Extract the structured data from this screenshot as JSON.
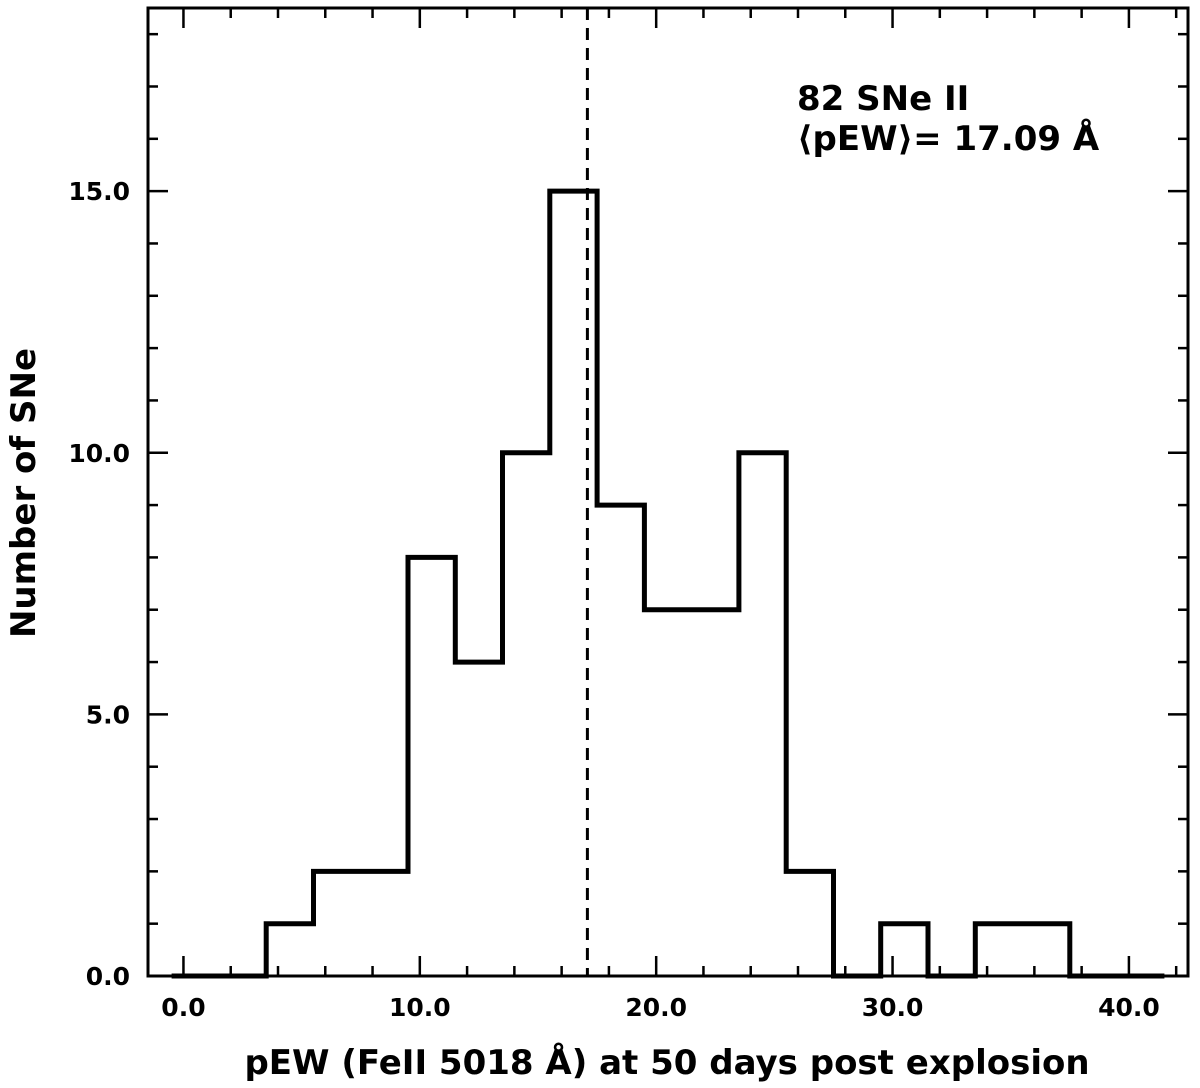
{
  "chart_data": {
    "type": "bar",
    "style": "step-histogram",
    "title": "",
    "xlabel": "pEW (FeII 5018 Å) at 50 days post explosion",
    "ylabel": "Number of SNe",
    "xlim": [
      -1.5,
      42.5
    ],
    "ylim": [
      0,
      18.5
    ],
    "bin_edges": [
      -0.5,
      1.5,
      3.5,
      5.5,
      7.5,
      9.5,
      11.5,
      13.5,
      15.5,
      17.5,
      19.5,
      21.5,
      23.5,
      25.5,
      27.5,
      29.5,
      31.5,
      33.5,
      35.5,
      37.5,
      39.5,
      41.5
    ],
    "bin_centers": [
      0.5,
      2.5,
      4.5,
      6.5,
      8.5,
      10.5,
      12.5,
      14.5,
      16.5,
      18.5,
      20.5,
      22.5,
      24.5,
      26.5,
      28.5,
      30.5,
      32.5,
      34.5,
      36.5,
      38.5,
      40.5
    ],
    "values": [
      0,
      0,
      1,
      2,
      2,
      8,
      6,
      10,
      15,
      9,
      7,
      7,
      10,
      2,
      0,
      1,
      0,
      1,
      1,
      0,
      0
    ],
    "mean_line": {
      "x": 17.09,
      "style": "dashed"
    },
    "x_ticks": [
      0,
      10,
      20,
      30,
      40
    ],
    "x_tick_labels": [
      "0.0",
      "10.0",
      "20.0",
      "30.0",
      "40.0"
    ],
    "y_ticks": [
      0,
      5,
      10,
      15
    ],
    "y_tick_labels": [
      "0.0",
      "5.0",
      "10.0",
      "15.0"
    ],
    "grid": false,
    "annotations": [
      "82 SNe II",
      "⟨pEW⟩= 17.09 Å"
    ]
  },
  "colors": {
    "line": "#000000",
    "background": "#ffffff"
  }
}
